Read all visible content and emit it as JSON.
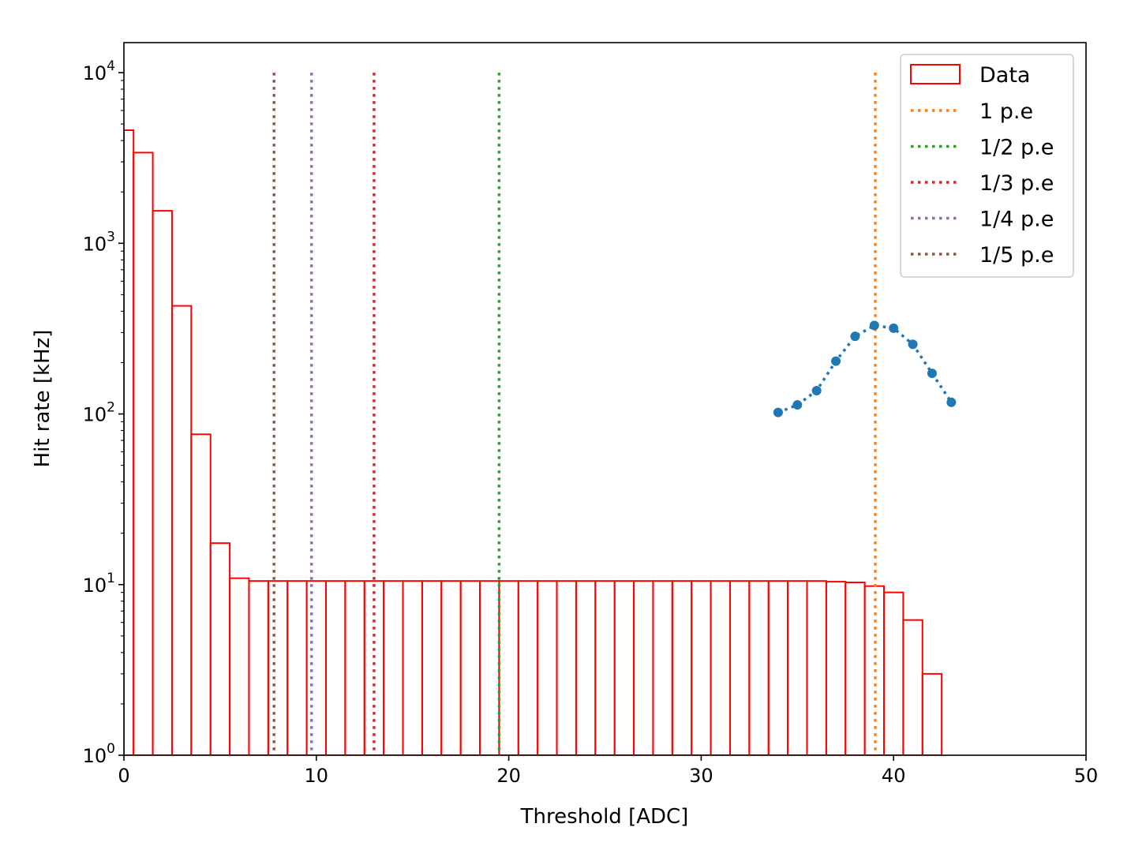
{
  "chart_data": {
    "type": "bar",
    "xlabel": "Threshold [ADC]",
    "ylabel": "Hit rate [kHz]",
    "xlim": [
      0,
      50
    ],
    "ylim": [
      1,
      15000
    ],
    "yscale": "log",
    "grid": false,
    "legend_position": "top-right",
    "x_ticks": [
      0,
      10,
      20,
      30,
      40,
      50
    ],
    "x_tick_labels": [
      "0",
      "10",
      "20",
      "30",
      "40",
      "50"
    ],
    "y_ticks": [
      {
        "value": 1,
        "base": "10",
        "exp": "0"
      },
      {
        "value": 10,
        "base": "10",
        "exp": "1"
      },
      {
        "value": 100,
        "base": "10",
        "exp": "2"
      },
      {
        "value": 1000,
        "base": "10",
        "exp": "3"
      },
      {
        "value": 10000,
        "base": "10",
        "exp": "4"
      }
    ],
    "histogram": {
      "name": "Data",
      "color": "#ff0000",
      "bin_edges": [
        0.5,
        1.5,
        2.5,
        3.5,
        4.5,
        5.5,
        6.5,
        7.5,
        8.5,
        9.5,
        10.5,
        11.5,
        12.5,
        13.5,
        14.5,
        15.5,
        16.5,
        17.5,
        18.5,
        19.5,
        20.5,
        21.5,
        22.5,
        23.5,
        24.5,
        25.5,
        26.5,
        27.5,
        28.5,
        29.5,
        30.5,
        31.5,
        32.5,
        33.5,
        34.5,
        35.5,
        36.5,
        37.5,
        38.5,
        39.5,
        40.5,
        41.5,
        42.5
      ],
      "values": [
        4600,
        3400,
        1550,
        430,
        76,
        17.5,
        10.9,
        10.5,
        10.5,
        10.5,
        10.5,
        10.5,
        10.5,
        10.5,
        10.5,
        10.5,
        10.5,
        10.5,
        10.5,
        10.5,
        10.5,
        10.5,
        10.5,
        10.5,
        10.5,
        10.5,
        10.5,
        10.5,
        10.5,
        10.5,
        10.5,
        10.5,
        10.5,
        10.5,
        10.5,
        10.5,
        10.5,
        10.4,
        10.3,
        9.8,
        9.0,
        6.2,
        3.0
      ]
    },
    "first_bin_left_edge": 0,
    "vertical_lines": [
      {
        "name": "1 p.e",
        "x": 39.05,
        "color": "#ff7f0e"
      },
      {
        "name": "1/2 p.e",
        "x": 19.5,
        "color": "#2ca02c"
      },
      {
        "name": "1/3 p.e",
        "x": 13.0,
        "color": "#d62728"
      },
      {
        "name": "1/4 p.e",
        "x": 9.75,
        "color": "#9467bd"
      },
      {
        "name": "1/5 p.e",
        "x": 7.8,
        "color": "#8c564b"
      }
    ],
    "vertical_line_ymax": 10000,
    "points_series": {
      "color": "#1f77b4",
      "x": [
        34,
        35,
        36,
        37,
        38,
        39,
        40,
        41,
        42,
        43
      ],
      "y": [
        102,
        113,
        137,
        204,
        285,
        330,
        318,
        256,
        173,
        117
      ]
    }
  }
}
